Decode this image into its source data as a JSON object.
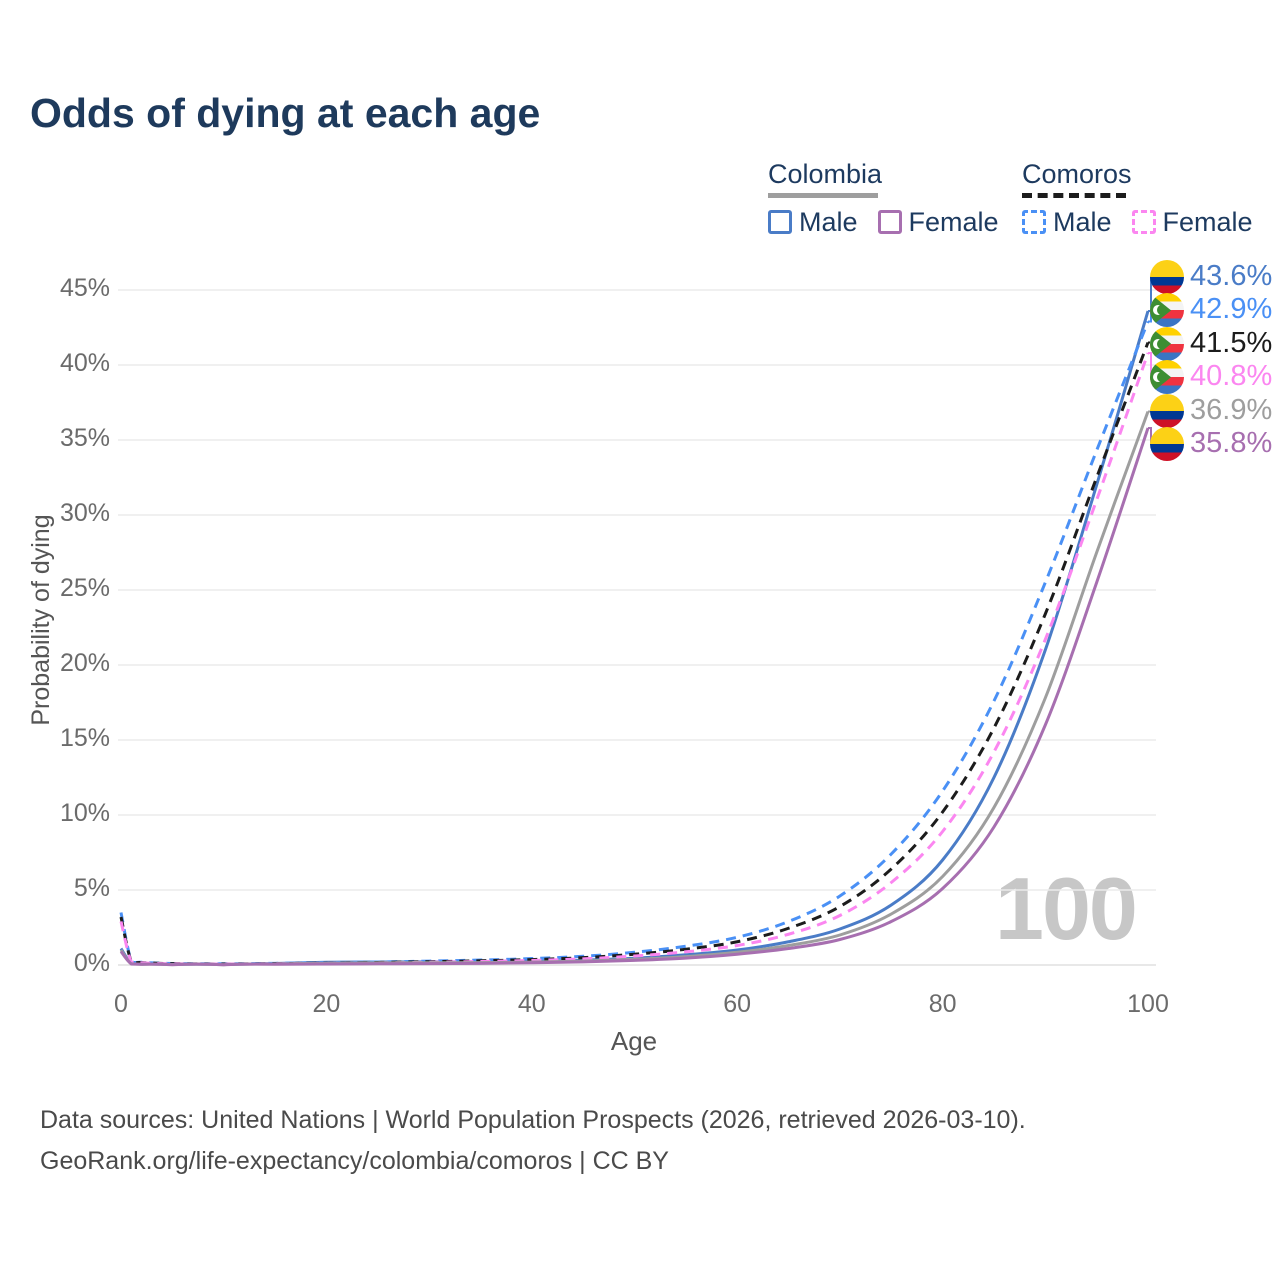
{
  "title": "Odds of dying at each age",
  "legend": {
    "colombia": {
      "label": "Colombia",
      "male": "Male",
      "female": "Female",
      "underline_color": "#9e9e9e",
      "underline_style": "solid",
      "male_color": "#4a7cc7",
      "female_color": "#a76fb0"
    },
    "comoros": {
      "label": "Comoros",
      "male": "Male",
      "female": "Female",
      "underline_color": "#1c1c1c",
      "underline_style": "dashed",
      "male_color": "#4a90f5",
      "female_color": "#fb86f0"
    }
  },
  "axes": {
    "y_label": "Probability of dying",
    "x_label": "Age",
    "y_ticks": [
      "45%",
      "40%",
      "35%",
      "30%",
      "25%",
      "20%",
      "15%",
      "10%",
      "5%",
      "0%"
    ],
    "y_tick_values": [
      45,
      40,
      35,
      30,
      25,
      20,
      15,
      10,
      5,
      0
    ],
    "x_ticks": [
      "0",
      "20",
      "40",
      "60",
      "80",
      "100"
    ],
    "x_tick_values": [
      0,
      20,
      40,
      60,
      80,
      100
    ]
  },
  "watermark": "100",
  "footer": {
    "line1": "Data sources: United Nations | World Population Prospects (2026, retrieved 2026-03-10).",
    "line2": "GeoRank.org/life-expectancy/colombia/comoros | CC BY"
  },
  "colors": {
    "title": "#1e3a5c",
    "legend_text": "#1d3a5f",
    "axis_text": "#6b6b6b",
    "grid": "#ececec",
    "zero_line": "#e0e0e0",
    "watermark": "#c7c7c7",
    "footer": "#4a4a4a"
  },
  "chart_data": {
    "type": "line",
    "title": "Odds of dying at each age",
    "xlabel": "Age",
    "ylabel": "Probability of dying",
    "xlim": [
      0,
      100
    ],
    "ylim_percent": [
      0,
      45
    ],
    "grid": "horizontal-only",
    "legend_position": "top-right",
    "x_ages": [
      0,
      1,
      2,
      5,
      10,
      15,
      20,
      25,
      30,
      35,
      40,
      45,
      50,
      55,
      60,
      65,
      70,
      75,
      80,
      85,
      90,
      95,
      100
    ],
    "series": [
      {
        "name": "Colombia Male",
        "country": "colombia",
        "sex": "male",
        "style": "solid",
        "color": "#4a7cc7",
        "end_label": "43.6%",
        "end_value": 43.6,
        "values_percent": [
          1.1,
          0.09,
          0.06,
          0.03,
          0.03,
          0.1,
          0.18,
          0.2,
          0.21,
          0.21,
          0.24,
          0.32,
          0.45,
          0.68,
          1.0,
          1.55,
          2.4,
          4.0,
          7.0,
          12.5,
          21.0,
          32.0,
          43.6
        ]
      },
      {
        "name": "Comoros Male",
        "country": "comoros",
        "sex": "male",
        "style": "dashed",
        "color": "#4a90f5",
        "end_label": "42.9%",
        "end_value": 42.9,
        "values_percent": [
          3.5,
          0.28,
          0.18,
          0.1,
          0.08,
          0.11,
          0.16,
          0.2,
          0.26,
          0.33,
          0.43,
          0.58,
          0.85,
          1.25,
          1.85,
          2.9,
          4.6,
          7.4,
          11.6,
          17.6,
          25.5,
          34.3,
          42.9
        ]
      },
      {
        "name": "Comoros",
        "country": "comoros",
        "sex": "all",
        "style": "dashed",
        "color": "#1c1c1c",
        "end_label": "41.5%",
        "end_value": 41.5,
        "values_percent": [
          3.2,
          0.25,
          0.16,
          0.09,
          0.07,
          0.09,
          0.13,
          0.17,
          0.22,
          0.28,
          0.36,
          0.49,
          0.72,
          1.05,
          1.55,
          2.45,
          3.9,
          6.4,
          10.2,
          15.8,
          23.4,
          32.5,
          41.5
        ]
      },
      {
        "name": "Comoros Female",
        "country": "comoros",
        "sex": "female",
        "style": "dashed",
        "color": "#fb86f0",
        "end_label": "40.8%",
        "end_value": 40.8,
        "values_percent": [
          2.9,
          0.22,
          0.14,
          0.08,
          0.06,
          0.08,
          0.11,
          0.14,
          0.18,
          0.23,
          0.3,
          0.41,
          0.6,
          0.88,
          1.3,
          2.05,
          3.3,
          5.5,
          8.9,
          14.2,
          21.7,
          31.0,
          40.8
        ]
      },
      {
        "name": "Colombia",
        "country": "colombia",
        "sex": "all",
        "style": "solid",
        "color": "#9e9e9e",
        "end_label": "36.9%",
        "end_value": 36.9,
        "values_percent": [
          1.0,
          0.08,
          0.05,
          0.03,
          0.02,
          0.07,
          0.12,
          0.14,
          0.15,
          0.16,
          0.19,
          0.26,
          0.38,
          0.56,
          0.85,
          1.3,
          2.0,
          3.4,
          5.9,
          10.5,
          17.8,
          27.5,
          36.9
        ]
      },
      {
        "name": "Colombia Female",
        "country": "colombia",
        "sex": "female",
        "style": "solid",
        "color": "#a76fb0",
        "end_label": "35.8%",
        "end_value": 35.8,
        "values_percent": [
          0.9,
          0.07,
          0.05,
          0.02,
          0.02,
          0.05,
          0.07,
          0.08,
          0.09,
          0.11,
          0.15,
          0.21,
          0.31,
          0.46,
          0.72,
          1.1,
          1.7,
          2.9,
          5.1,
          9.2,
          16.0,
          25.5,
          35.8
        ]
      }
    ]
  }
}
